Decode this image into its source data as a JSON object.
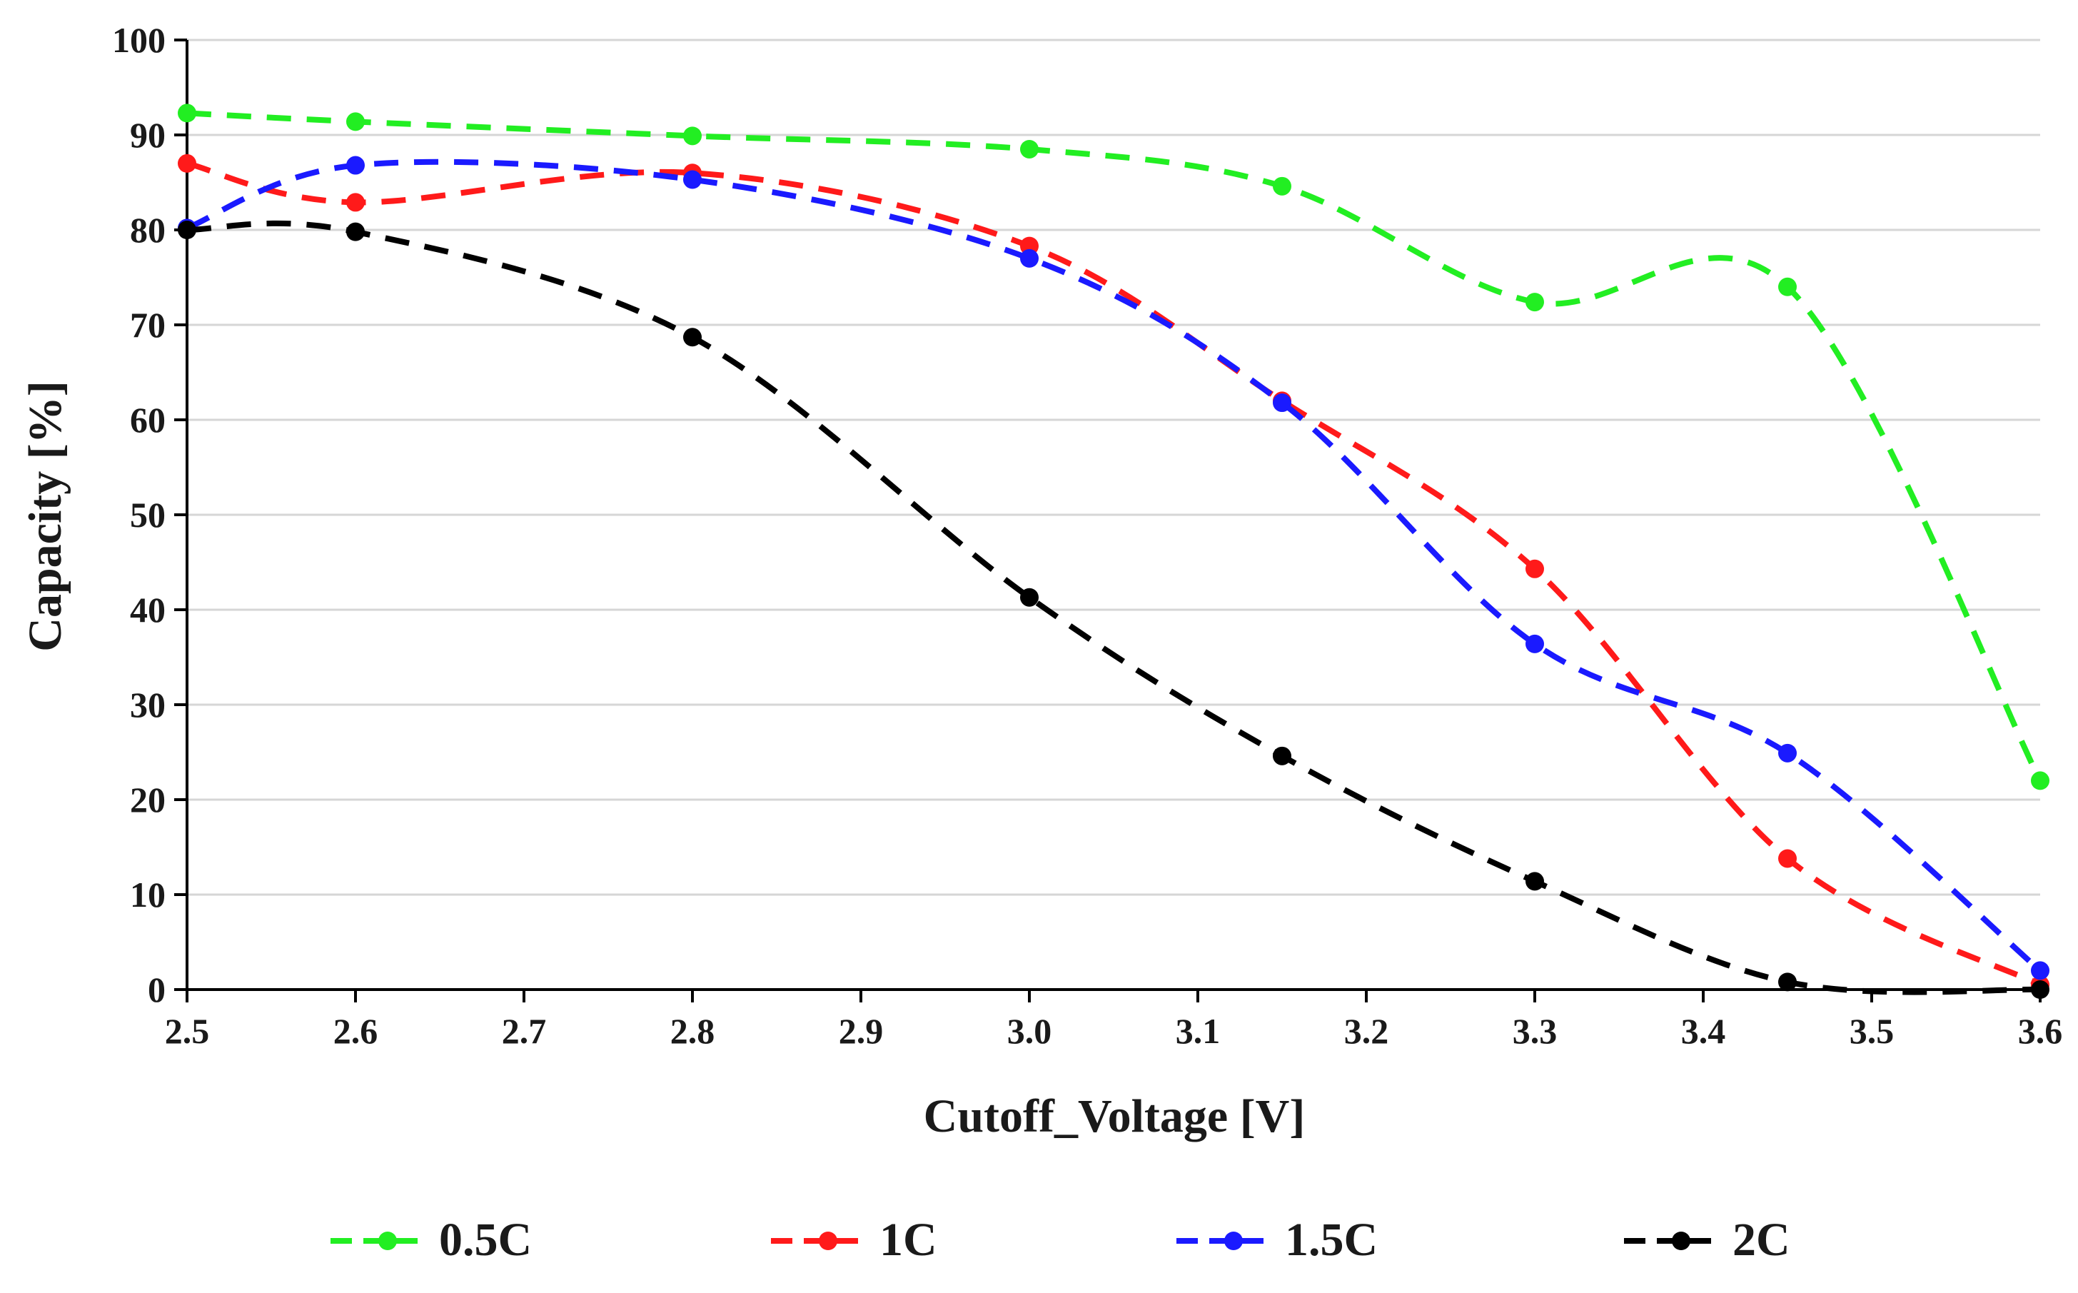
{
  "chart_data": {
    "type": "line",
    "title": "",
    "xlabel": "Cutoff_Voltage [V]",
    "ylabel": "Capacity [%]",
    "xlim": [
      2.5,
      3.6
    ],
    "ylim": [
      0,
      100
    ],
    "grid": true,
    "legend_position": "bottom",
    "x_ticks": [
      "2.5",
      "2.6",
      "2.7",
      "2.8",
      "2.9",
      "3.0",
      "3.1",
      "3.2",
      "3.3",
      "3.4",
      "3.5",
      "3.6"
    ],
    "y_ticks": [
      "0",
      "10",
      "20",
      "30",
      "40",
      "50",
      "60",
      "70",
      "80",
      "90",
      "100"
    ],
    "x": [
      2.5,
      2.6,
      2.8,
      3.0,
      3.15,
      3.3,
      3.45,
      3.6
    ],
    "series": [
      {
        "name": "0.5C",
        "color": "#22ee22",
        "values": [
          92.3,
          91.4,
          89.9,
          88.5,
          84.6,
          72.4,
          74.0,
          22.0
        ]
      },
      {
        "name": "1C",
        "color": "#ff1a1a",
        "values": [
          87.0,
          82.9,
          86.0,
          78.3,
          62.0,
          44.3,
          13.8,
          0.5
        ]
      },
      {
        "name": "1.5C",
        "color": "#1a1aff",
        "values": [
          80.2,
          86.8,
          85.3,
          77.0,
          61.8,
          36.4,
          24.9,
          2.0
        ]
      },
      {
        "name": "2C",
        "color": "#000000",
        "values": [
          80.0,
          79.8,
          68.7,
          41.3,
          24.6,
          11.4,
          0.8,
          0.0
        ]
      }
    ]
  }
}
